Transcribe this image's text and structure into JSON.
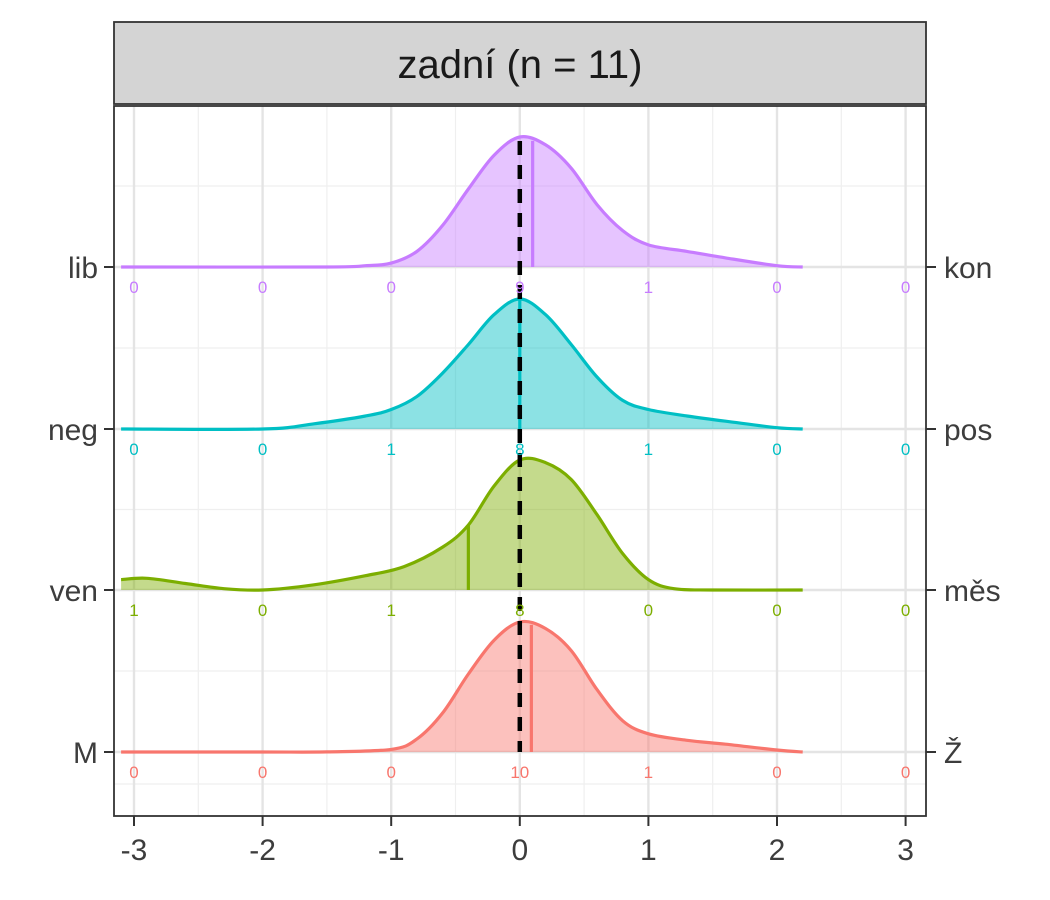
{
  "chart_data": {
    "type": "ridgeline-density",
    "facet_title": "zadní (n = 11)",
    "x_ticks": [
      "-3",
      "-2",
      "-1",
      "0",
      "1",
      "2",
      "3"
    ],
    "x_tick_values": [
      -3,
      -2,
      -1,
      0,
      1,
      2,
      3
    ],
    "xlim": [
      -3.1,
      3.1
    ],
    "reference_line_x": 0,
    "grid": true,
    "rows": [
      {
        "left_label": "M",
        "right_label": "Ž",
        "color": "#F8766D",
        "mean": 0.09,
        "density": [
          [
            -3.1,
            0
          ],
          [
            -2.0,
            0
          ],
          [
            -1.5,
            0.001
          ],
          [
            -1.0,
            0.02
          ],
          [
            -0.8,
            0.1
          ],
          [
            -0.6,
            0.3
          ],
          [
            -0.4,
            0.6
          ],
          [
            -0.2,
            0.86
          ],
          [
            0,
            1.0
          ],
          [
            0.2,
            0.95
          ],
          [
            0.4,
            0.78
          ],
          [
            0.6,
            0.48
          ],
          [
            0.8,
            0.24
          ],
          [
            1.0,
            0.14
          ],
          [
            1.3,
            0.09
          ],
          [
            1.6,
            0.06
          ],
          [
            2.0,
            0.015
          ],
          [
            2.2,
            0
          ]
        ],
        "counts": [
          "0",
          "0",
          "0",
          "10",
          "1",
          "0",
          "0"
        ]
      },
      {
        "left_label": "ven",
        "right_label": "měs",
        "color": "#7CAE00",
        "mean": -0.4,
        "density": [
          [
            -3.1,
            0.08
          ],
          [
            -2.9,
            0.09
          ],
          [
            -2.6,
            0.05
          ],
          [
            -2.3,
            0.01
          ],
          [
            -2.0,
            0
          ],
          [
            -1.6,
            0.04
          ],
          [
            -1.2,
            0.11
          ],
          [
            -0.9,
            0.18
          ],
          [
            -0.6,
            0.33
          ],
          [
            -0.4,
            0.5
          ],
          [
            -0.2,
            0.8
          ],
          [
            0,
            1.0
          ],
          [
            0.2,
            0.98
          ],
          [
            0.4,
            0.85
          ],
          [
            0.6,
            0.58
          ],
          [
            0.8,
            0.28
          ],
          [
            1.0,
            0.08
          ],
          [
            1.2,
            0.01
          ],
          [
            1.5,
            0
          ],
          [
            2.2,
            0
          ]
        ],
        "counts": [
          "1",
          "0",
          "1",
          "8",
          "0",
          "0",
          "0"
        ]
      },
      {
        "left_label": "neg",
        "right_label": "pos",
        "color": "#00BFC4",
        "mean": 0.0,
        "density": [
          [
            -3.1,
            0
          ],
          [
            -2.0,
            0
          ],
          [
            -1.6,
            0.04
          ],
          [
            -1.2,
            0.1
          ],
          [
            -1.0,
            0.15
          ],
          [
            -0.8,
            0.25
          ],
          [
            -0.6,
            0.43
          ],
          [
            -0.4,
            0.65
          ],
          [
            -0.2,
            0.88
          ],
          [
            0,
            1.0
          ],
          [
            0.2,
            0.88
          ],
          [
            0.4,
            0.65
          ],
          [
            0.6,
            0.4
          ],
          [
            0.8,
            0.22
          ],
          [
            1.0,
            0.15
          ],
          [
            1.3,
            0.1
          ],
          [
            1.6,
            0.06
          ],
          [
            2.0,
            0.01
          ],
          [
            2.2,
            0
          ]
        ],
        "counts": [
          "0",
          "0",
          "1",
          "8",
          "1",
          "0",
          "0"
        ]
      },
      {
        "left_label": "lib",
        "right_label": "kon",
        "color": "#C77CFF",
        "mean": 0.1,
        "density": [
          [
            -3.1,
            0
          ],
          [
            -1.5,
            0
          ],
          [
            -1.2,
            0.01
          ],
          [
            -1.0,
            0.03
          ],
          [
            -0.8,
            0.12
          ],
          [
            -0.6,
            0.32
          ],
          [
            -0.4,
            0.6
          ],
          [
            -0.2,
            0.86
          ],
          [
            0,
            1.0
          ],
          [
            0.2,
            0.94
          ],
          [
            0.4,
            0.76
          ],
          [
            0.6,
            0.48
          ],
          [
            0.8,
            0.28
          ],
          [
            1.0,
            0.17
          ],
          [
            1.3,
            0.12
          ],
          [
            1.6,
            0.07
          ],
          [
            2.0,
            0.01
          ],
          [
            2.2,
            0
          ]
        ],
        "counts": [
          "0",
          "0",
          "0",
          "9",
          "1",
          "0",
          "0"
        ]
      }
    ]
  }
}
